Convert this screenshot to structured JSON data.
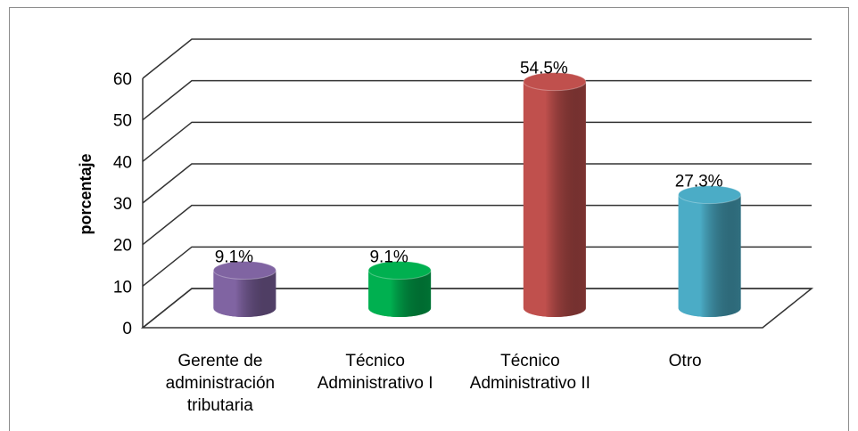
{
  "chart_data": {
    "type": "bar3d",
    "y_label": "porcentaje",
    "categories": [
      "Gerente de administración tributaria",
      "Técnico Administrativo I",
      "Técnico Administrativo II",
      "Otro"
    ],
    "values": [
      9.1,
      9.1,
      54.5,
      27.3
    ],
    "value_labels": [
      "9.1%",
      "9.1%",
      "54.5%",
      "27.3%"
    ],
    "colors": [
      "#8064a2",
      "#00b050",
      "#c0504d",
      "#4bacc6"
    ],
    "ylim": [
      0,
      60
    ],
    "yticks": [
      0,
      10,
      20,
      30,
      40,
      50,
      60
    ],
    "grid": true
  }
}
